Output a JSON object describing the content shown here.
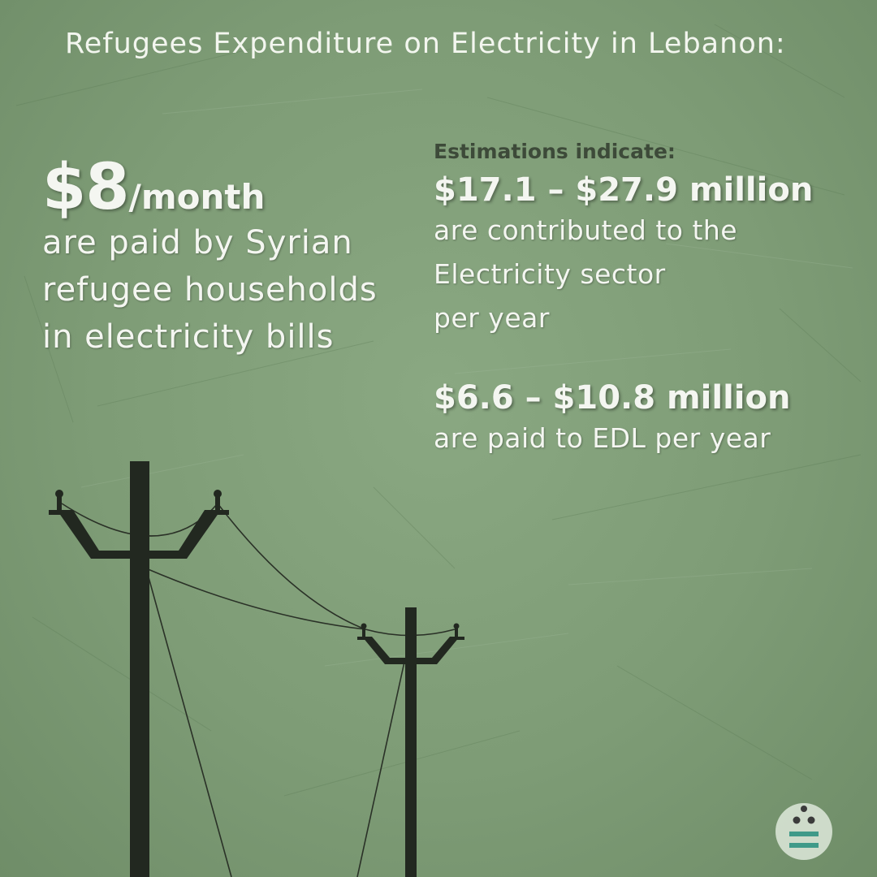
{
  "title": "Refugees Expenditure on Electricity in Lebanon:",
  "monthly": {
    "amount": "$8",
    "unit": "/month",
    "description_lines": [
      "are paid by Syrian",
      "refugee households",
      "in electricity bills"
    ]
  },
  "estimations": {
    "label": "Estimations indicate:",
    "sector": {
      "range": "$17.1 – $27.9 million",
      "description_lines": [
        "are contributed to the",
        "Electricity sector",
        "per year"
      ]
    },
    "edl": {
      "range": "$6.6 – $10.8 million",
      "description_lines": [
        "are paid to EDL per year"
      ]
    }
  },
  "colors": {
    "background": "#7f9d78",
    "text": "#f4f6f1",
    "label": "#3d4a39",
    "pole": "#222820",
    "logo_circle": "#d6e2d2",
    "logo_accent": "#3f9a89"
  },
  "icons": {
    "logo": "logo-icon",
    "poles": "power-pole-icon"
  }
}
